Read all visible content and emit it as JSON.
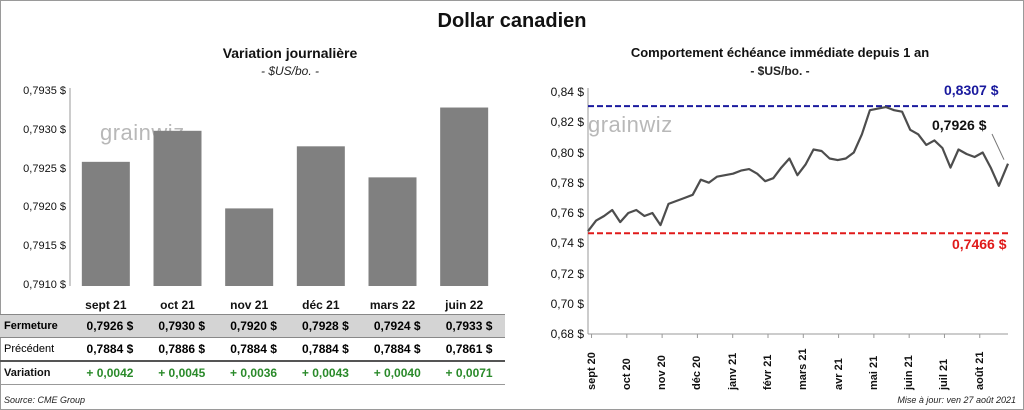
{
  "title": "Dollar canadien",
  "source": "Source: CME Group",
  "updated": "Mise à jour: ven 27 août 2021",
  "watermark": {
    "left": "grainwiz",
    "right": "grainwiz"
  },
  "chart_data": [
    {
      "type": "bar",
      "title": "Variation  journalière",
      "subtitle": "- $US/bo. -",
      "categories": [
        "sept 21",
        "oct 21",
        "nov 21",
        "déc 21",
        "mars 22",
        "juin 22"
      ],
      "values": [
        0.7926,
        0.793,
        0.792,
        0.7928,
        0.7924,
        0.7933
      ],
      "ylim": [
        0.791,
        0.7935
      ],
      "yticks": [
        "0,7935 $",
        "0,7930 $",
        "0,7925 $",
        "0,7920 $",
        "0,7915 $",
        "0,7910 $"
      ],
      "bar_color": "#808080",
      "grid": false
    },
    {
      "type": "line",
      "title": "Comportement échéance immédiate depuis 1 an",
      "subtitle": "- $US/bo. -",
      "x": [
        "2020-08-27",
        "2020-09-03",
        "2020-09-10",
        "2020-09-17",
        "2020-09-24",
        "2020-10-01",
        "2020-10-08",
        "2020-10-15",
        "2020-10-22",
        "2020-10-29",
        "2020-11-05",
        "2020-11-12",
        "2020-11-19",
        "2020-11-26",
        "2020-12-03",
        "2020-12-10",
        "2020-12-17",
        "2020-12-24",
        "2020-12-31",
        "2021-01-07",
        "2021-01-14",
        "2021-01-21",
        "2021-01-28",
        "2021-02-04",
        "2021-02-11",
        "2021-02-18",
        "2021-02-25",
        "2021-03-04",
        "2021-03-11",
        "2021-03-18",
        "2021-03-25",
        "2021-04-01",
        "2021-04-08",
        "2021-04-15",
        "2021-04-22",
        "2021-04-29",
        "2021-05-06",
        "2021-05-13",
        "2021-05-20",
        "2021-05-27",
        "2021-06-03",
        "2021-06-10",
        "2021-06-17",
        "2021-06-24",
        "2021-07-01",
        "2021-07-08",
        "2021-07-15",
        "2021-07-22",
        "2021-07-29",
        "2021-08-05",
        "2021-08-12",
        "2021-08-19",
        "2021-08-27"
      ],
      "y": [
        0.748,
        0.755,
        0.758,
        0.762,
        0.754,
        0.76,
        0.762,
        0.758,
        0.76,
        0.752,
        0.766,
        0.768,
        0.77,
        0.772,
        0.782,
        0.78,
        0.784,
        0.785,
        0.786,
        0.788,
        0.789,
        0.786,
        0.781,
        0.783,
        0.79,
        0.796,
        0.785,
        0.792,
        0.802,
        0.801,
        0.796,
        0.795,
        0.796,
        0.8,
        0.812,
        0.828,
        0.829,
        0.83,
        0.828,
        0.827,
        0.815,
        0.812,
        0.805,
        0.808,
        0.803,
        0.79,
        0.802,
        0.799,
        0.797,
        0.8,
        0.79,
        0.778,
        0.7926
      ],
      "ylim": [
        0.68,
        0.84
      ],
      "yticks": [
        "0,84 $",
        "0,82 $",
        "0,80 $",
        "0,78 $",
        "0,76 $",
        "0,74 $",
        "0,72 $",
        "0,70 $",
        "0,68 $"
      ],
      "xticks": [
        "sept 20",
        "oct 20",
        "nov 20",
        "déc 20",
        "janv 21",
        "févr 21",
        "mars 21",
        "avr 21",
        "mai 21",
        "juin 21",
        "juil 21",
        "août 21"
      ],
      "max_line": {
        "value": 0.8307,
        "label": "0,8307 $",
        "color": "#1a1a9e"
      },
      "min_line": {
        "value": 0.7466,
        "label": "0,7466 $",
        "color": "#e01a1a"
      },
      "last_value": {
        "value": 0.7926,
        "label": "0,7926 $"
      },
      "line_color": "#4d4d4d",
      "grid": false
    }
  ],
  "table": {
    "rows": [
      {
        "label": "Fermeture",
        "cells": [
          "0,7926  $",
          "0,7930  $",
          "0,7920  $",
          "0,7928  $",
          "0,7924  $",
          "0,7933  $"
        ]
      },
      {
        "label": "Précédent",
        "cells": [
          "0,7884  $",
          "0,7886  $",
          "0,7884  $",
          "0,7884  $",
          "0,7884  $",
          "0,7861  $"
        ]
      },
      {
        "label": "Variation",
        "cells": [
          "+ 0,0042",
          "+ 0,0045",
          "+ 0,0036",
          "+ 0,0043",
          "+ 0,0040",
          "+ 0,0071"
        ]
      }
    ]
  }
}
